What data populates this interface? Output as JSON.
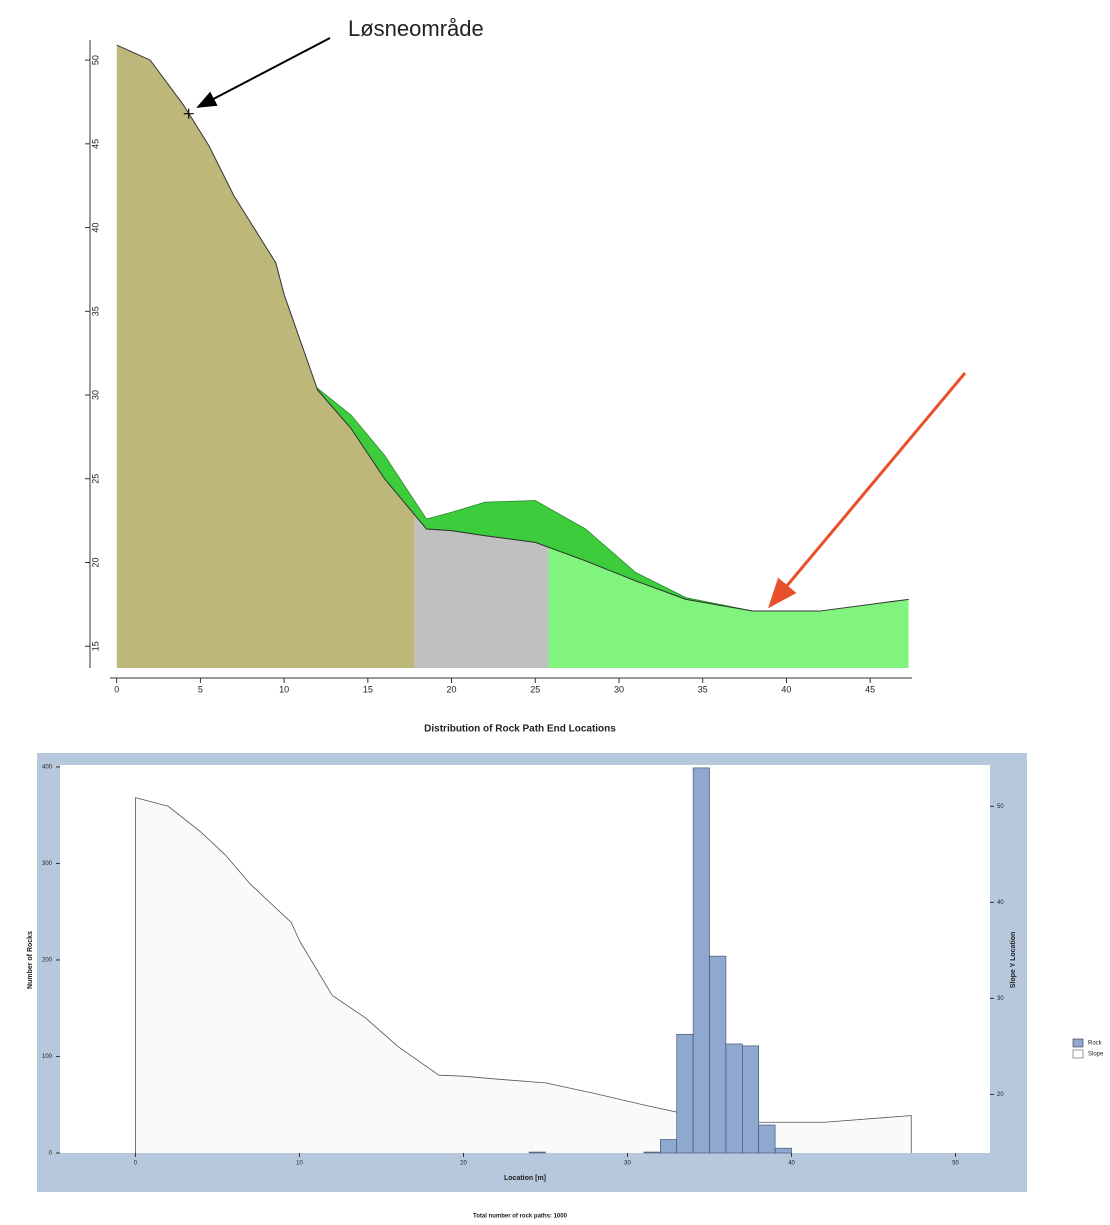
{
  "chart_data": [
    {
      "type": "area",
      "annotation": "Løsneområde",
      "x": [
        0,
        2,
        4,
        5.5,
        7,
        9.5,
        10,
        12,
        14,
        16,
        18.5,
        20,
        22,
        25,
        28,
        31,
        34,
        38,
        42,
        47.3
      ],
      "values": [
        50.9,
        50,
        47.3,
        44.9,
        41.9,
        37.9,
        36,
        30.3,
        28,
        25,
        22,
        21.9,
        21.6,
        21.2,
        20.1,
        18.9,
        17.8,
        17.1,
        17.1,
        17.8
      ],
      "envelope": [
        null,
        null,
        null,
        null,
        null,
        null,
        null,
        30.4,
        28.8,
        26.4,
        22.6,
        23,
        23.6,
        23.7,
        22,
        19.4,
        17.9,
        17.1,
        null,
        null
      ],
      "envelope_color": "#3ccc3c",
      "regions": [
        {
          "x0": 0,
          "x1": 17.8,
          "color": "#bdb77a"
        },
        {
          "x0": 17.8,
          "x1": 25.8,
          "color": "#c0c0c0"
        },
        {
          "x0": 25.8,
          "x1": 47.3,
          "color": "#80f47c"
        }
      ],
      "release_point": {
        "x": 4.3,
        "y": 46.8
      },
      "xlim": [
        -0.4,
        47.5
      ],
      "ylim": [
        13.7,
        51.2
      ],
      "xticks": [
        0,
        5,
        10,
        15,
        20,
        25,
        30,
        35,
        40,
        45
      ],
      "yticks": [
        15,
        20,
        25,
        30,
        35,
        40,
        45,
        50
      ]
    },
    {
      "type": "histogram",
      "title": "Distribution of Rock Path End Locations",
      "xlabel": "Location [m]",
      "ylabel": "Number of Rocks",
      "y2label": "Slope Y Location",
      "note": "Total number of rock paths: 1000",
      "name": "Rock",
      "color": "#8ea8cf",
      "bins": [
        24,
        25,
        26,
        27,
        28,
        29,
        30,
        31,
        32,
        33,
        34,
        35,
        36,
        37,
        38,
        39,
        40
      ],
      "values": [
        1,
        0,
        0,
        0,
        0,
        0,
        0,
        1,
        14,
        123,
        399,
        204,
        113,
        111,
        29,
        5
      ],
      "line": {
        "name": "Slope",
        "axis": "y2",
        "color": "#555555",
        "x": [
          0,
          2,
          4,
          5.5,
          7,
          9.5,
          10,
          12,
          14,
          16,
          18.5,
          20,
          22,
          25,
          28,
          31,
          34,
          38,
          42,
          47.3
        ],
        "values": [
          50.9,
          50,
          47.3,
          44.9,
          41.9,
          37.9,
          36,
          30.3,
          28,
          25,
          22,
          21.9,
          21.6,
          21.2,
          20.1,
          18.9,
          17.8,
          17.1,
          17.1,
          17.8
        ]
      },
      "xlim": [
        -4.6,
        52.1
      ],
      "ylim": [
        0,
        402
      ],
      "y2lim": [
        13.9,
        54.3
      ],
      "xticks": [
        0,
        10,
        20,
        30,
        40,
        50
      ],
      "yticks": [
        0,
        100,
        200,
        300,
        400
      ],
      "y2ticks": [
        20,
        30,
        40,
        50
      ]
    }
  ]
}
